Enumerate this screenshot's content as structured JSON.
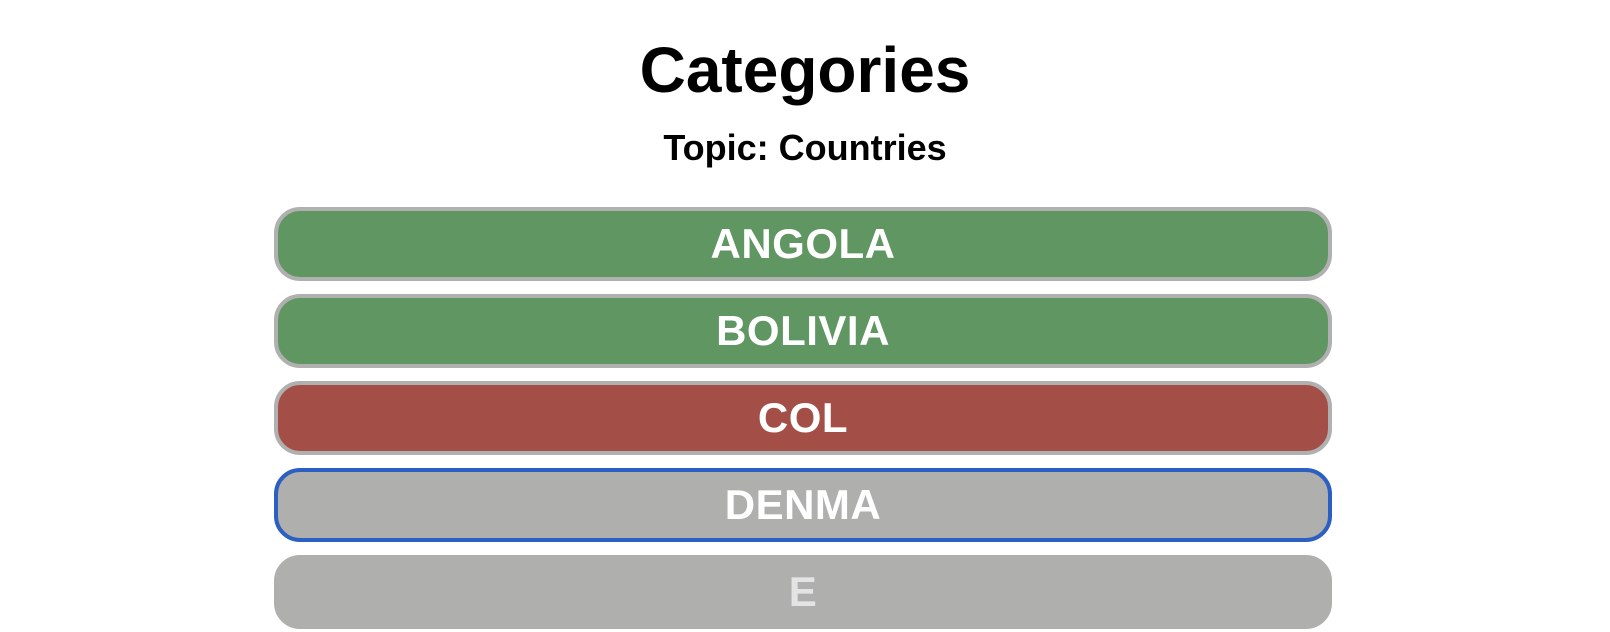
{
  "header": {
    "title": "Categories",
    "topic": "Topic: Countries"
  },
  "rows": [
    {
      "text": "ANGOLA",
      "state": "correct"
    },
    {
      "text": "BOLIVIA",
      "state": "correct"
    },
    {
      "text": "COL",
      "state": "wrong"
    },
    {
      "text": "DENMA",
      "state": "active"
    },
    {
      "text": "E",
      "state": "pending"
    }
  ],
  "colors": {
    "correct": "#5f9662",
    "wrong": "#a34f47",
    "neutral": "#afb0ae",
    "active_border": "#2b5fc2",
    "inactive_border": "#b0b0b0"
  }
}
